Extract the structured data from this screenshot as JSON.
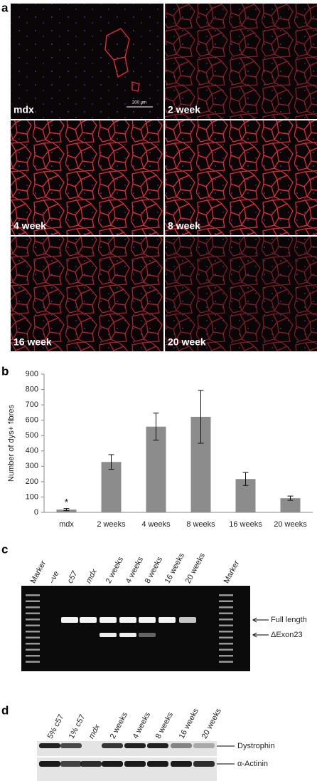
{
  "panel_a": {
    "label": "a",
    "images": [
      "mdx",
      "2 week",
      "4 week",
      "8 week",
      "16 week",
      "20 week"
    ],
    "scale_bar": "200 μm"
  },
  "chart_data": {
    "label": "b",
    "type": "bar",
    "ylabel": "Number of dys+ fibres",
    "categories": [
      "mdx",
      "2 weeks",
      "4 weeks",
      "8 weeks",
      "16 weeks",
      "20 weeks"
    ],
    "values": [
      18,
      328,
      558,
      622,
      217,
      92
    ],
    "errors": [
      7,
      48,
      88,
      172,
      42,
      14
    ],
    "color": "#8c8c8c",
    "ylim": [
      0,
      900
    ],
    "yticks": [
      0,
      100,
      200,
      300,
      400,
      500,
      600,
      700,
      800,
      900
    ],
    "annotations": [
      "*"
    ]
  },
  "panel_c": {
    "label": "c",
    "lanes": [
      "Marker",
      "–ve",
      "c57",
      "mdx",
      "2 weeks",
      "4 weeks",
      "8 weeks",
      "16 weeks",
      "20 weeks",
      "Marker"
    ],
    "bands": [
      "Full length",
      "ΔExon23"
    ]
  },
  "panel_d": {
    "label": "d",
    "lanes": [
      "5% c57",
      "1% c57",
      "mdx",
      "2 weeks",
      "4 weeks",
      "8 weeks",
      "16 weeks",
      "20 weeks"
    ],
    "bands": [
      "Dystrophin",
      "α-Actinin"
    ]
  }
}
